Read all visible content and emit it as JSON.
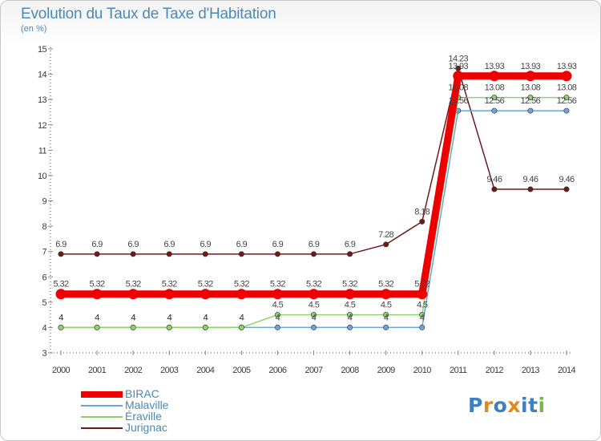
{
  "title": "Evolution du Taux de Taxe d'Habitation",
  "subtitle": "(en %)",
  "logo": {
    "text": "Proxiti",
    "colors": [
      "#3b7fc4",
      "#e08a1e",
      "#3b7fc4",
      "#e08a1e",
      "#3b7fc4",
      "#3b7fc4",
      "#7ab648"
    ]
  },
  "chart_data": {
    "type": "line",
    "title": "Evolution du Taux de Taxe d'Habitation",
    "ylabel": "(en %)",
    "xlabel": "",
    "ylim": [
      3,
      15
    ],
    "yticks": [
      3,
      4,
      5,
      6,
      7,
      8,
      9,
      10,
      11,
      12,
      13,
      14,
      15
    ],
    "grid": false,
    "legend_position": "bottom-left",
    "x": [
      "2000",
      "2001",
      "2002",
      "2003",
      "2004",
      "2005",
      "2006",
      "2007",
      "2008",
      "2009",
      "2010",
      "2011",
      "2012",
      "2013",
      "2014"
    ],
    "series": [
      {
        "name": "Jurignac",
        "color": "#6e1a1a",
        "values": [
          6.9,
          6.9,
          6.9,
          6.9,
          6.9,
          6.9,
          6.9,
          6.9,
          6.9,
          7.28,
          8.18,
          14.23,
          9.46,
          9.46,
          9.46
        ],
        "labels": [
          "6.9",
          "6.9",
          "6.9",
          "6.9",
          "6.9",
          "6.9",
          "6.9",
          "6.9",
          "6.9",
          "7.28",
          "8.18",
          "14.23",
          "9.46",
          "9.46",
          "9.46"
        ]
      },
      {
        "name": "Malaville",
        "color": "#6fa3d6",
        "values": [
          4,
          4,
          4,
          4,
          4,
          4,
          4,
          4,
          4,
          4,
          4,
          12.56,
          12.56,
          12.56,
          12.56
        ],
        "labels": [
          "4",
          "4",
          "4",
          "4",
          "4",
          "4",
          "4",
          "4",
          "4",
          "4",
          "4",
          "12.56",
          "12.56",
          "12.56",
          "12.56"
        ]
      },
      {
        "name": "Éraville",
        "color": "#8fd16a",
        "values": [
          4,
          4,
          4,
          4,
          4,
          4,
          4.5,
          4.5,
          4.5,
          4.5,
          4.5,
          13.08,
          13.08,
          13.08,
          13.08
        ],
        "labels": [
          "4",
          "4",
          "4",
          "4",
          "4",
          "4",
          "4.5",
          "4.5",
          "4.5",
          "4.5",
          "4.5",
          "13.08",
          "13.08",
          "13.08",
          "13.08"
        ]
      },
      {
        "name": "BIRAC",
        "color": "#ee0000",
        "values": [
          5.32,
          5.32,
          5.32,
          5.32,
          5.32,
          5.32,
          5.32,
          5.32,
          5.32,
          5.32,
          5.32,
          13.93,
          13.93,
          13.93,
          13.93
        ],
        "labels": [
          "5.32",
          "5.32",
          "5.32",
          "5.32",
          "5.32",
          "5.32",
          "5.32",
          "5.32",
          "5.32",
          "5.32",
          "5.32",
          "13.93",
          "13.93",
          "13.93",
          "13.93"
        ]
      }
    ],
    "legend": [
      "BIRAC",
      "Malaville",
      "Éraville",
      "Jurignac"
    ]
  }
}
